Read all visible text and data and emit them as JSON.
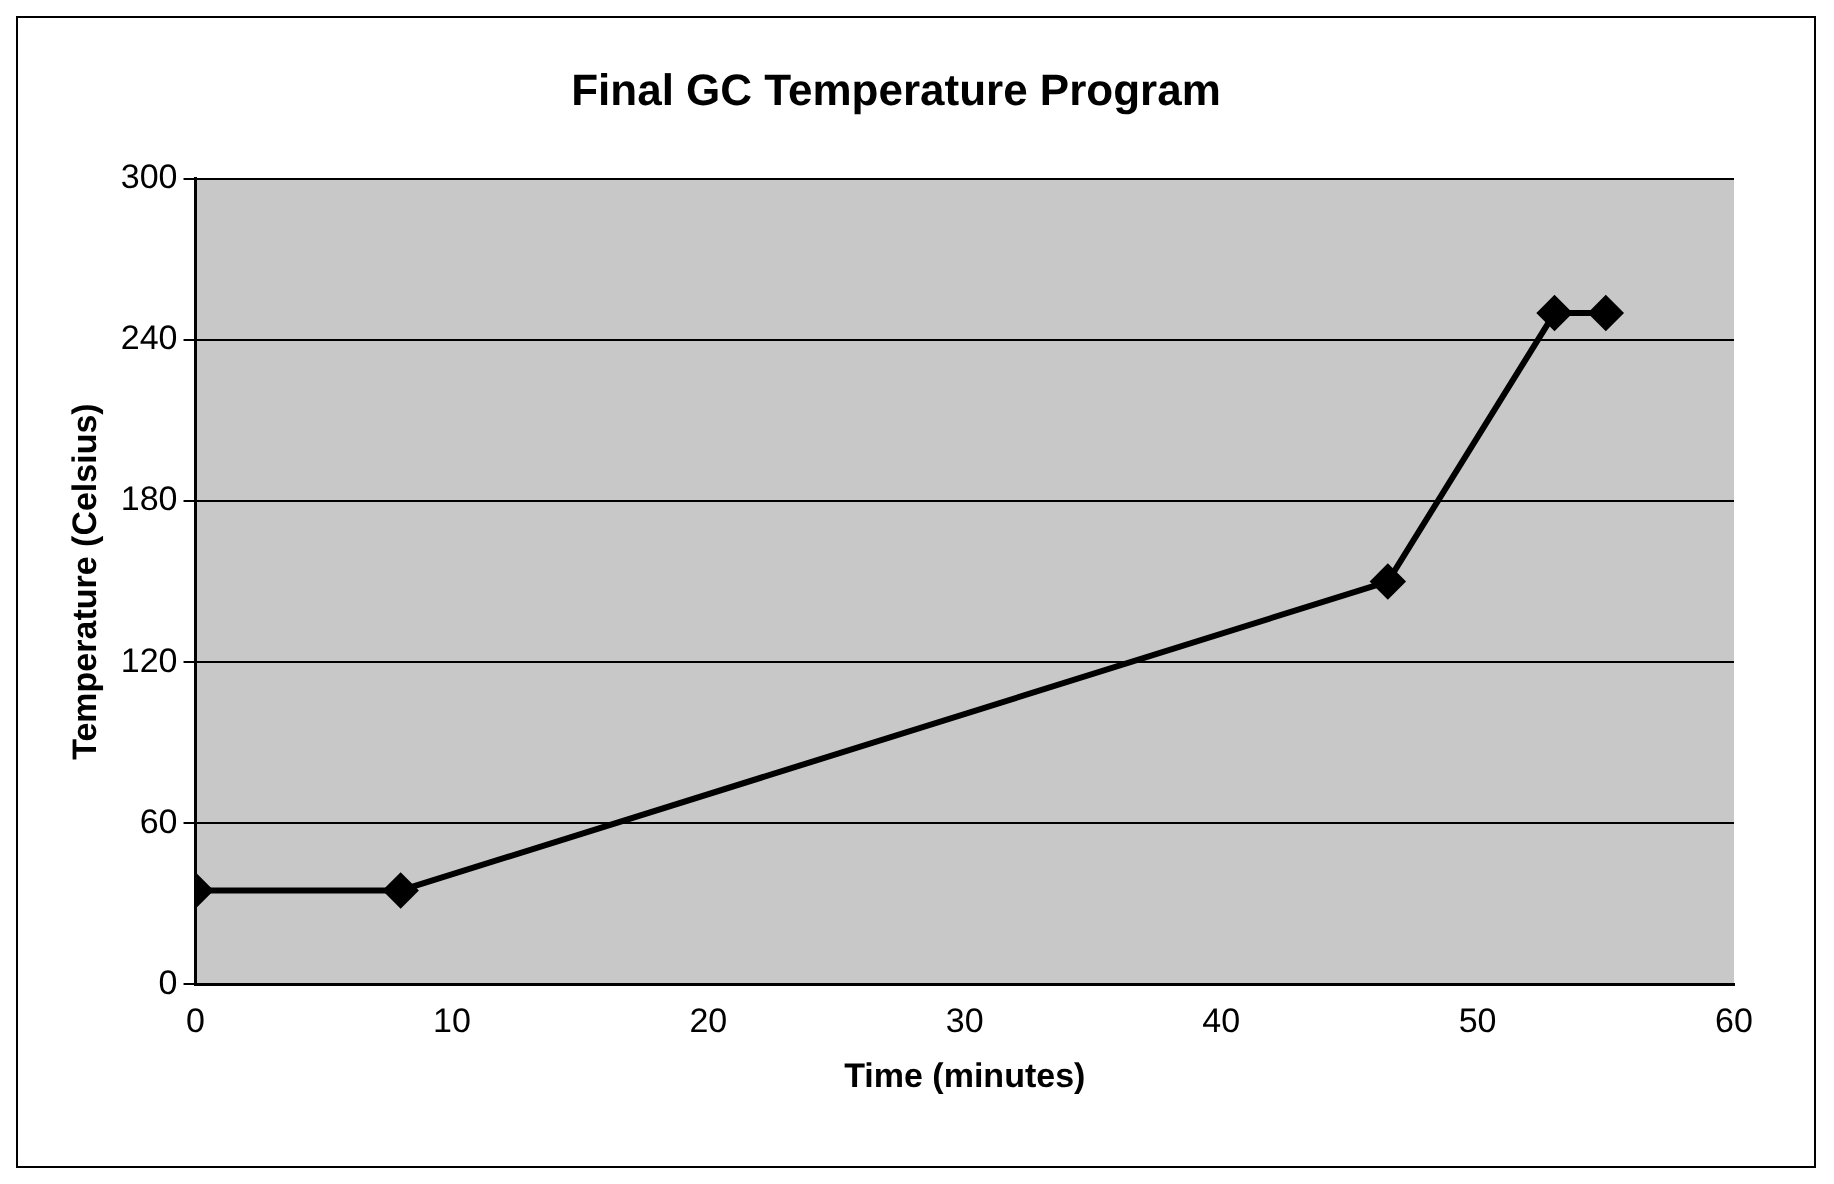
{
  "chart_data": {
    "type": "line",
    "title": "Final GC Temperature Program",
    "xlabel": "Time (minutes)",
    "ylabel": "Temperature (Celsius)",
    "x": [
      0,
      8,
      46.5,
      53,
      55
    ],
    "series": [
      {
        "color": "#000000",
        "values": [
          35,
          35,
          150,
          250,
          250
        ]
      }
    ],
    "xlim": [
      0,
      60
    ],
    "xticks": [
      0,
      10,
      20,
      30,
      40,
      50,
      60
    ],
    "ylim": [
      0,
      300
    ],
    "yticks": [
      0,
      60,
      120,
      180,
      240,
      300
    ],
    "grid": "y",
    "legend": false,
    "marker": "diamond",
    "line_style": "solid"
  }
}
